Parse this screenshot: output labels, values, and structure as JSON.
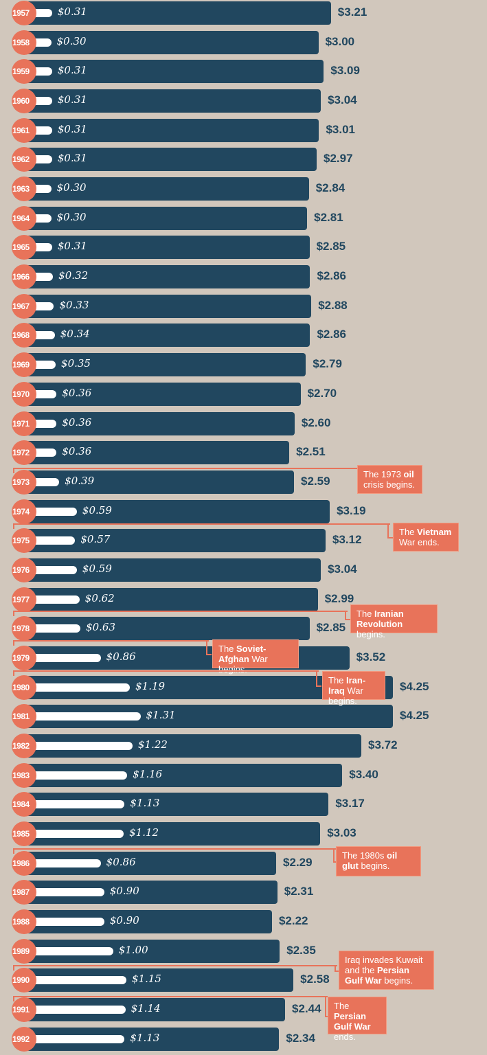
{
  "chart_data": {
    "type": "bar",
    "orientation": "horizontal",
    "categories": [
      "1957",
      "1958",
      "1959",
      "1960",
      "1961",
      "1962",
      "1963",
      "1964",
      "1965",
      "1966",
      "1967",
      "1968",
      "1969",
      "1970",
      "1971",
      "1972",
      "1973",
      "1974",
      "1975",
      "1976",
      "1977",
      "1978",
      "1979",
      "1980",
      "1981",
      "1982",
      "1983",
      "1984",
      "1985",
      "1986",
      "1987",
      "1988",
      "1989",
      "1990",
      "1991",
      "1992"
    ],
    "series": [
      {
        "values": [
          0.31,
          0.3,
          0.31,
          0.31,
          0.31,
          0.31,
          0.3,
          0.3,
          0.31,
          0.32,
          0.33,
          0.34,
          0.35,
          0.36,
          0.36,
          0.36,
          0.39,
          0.59,
          0.57,
          0.59,
          0.62,
          0.63,
          0.86,
          1.19,
          1.31,
          1.22,
          1.16,
          1.13,
          1.12,
          0.86,
          0.9,
          0.9,
          1.0,
          1.15,
          1.14,
          1.13
        ],
        "labels": [
          "$0.31",
          "$0.30",
          "$0.31",
          "$0.31",
          "$0.31",
          "$0.31",
          "$0.30",
          "$0.30",
          "$0.31",
          "$0.32",
          "$0.33",
          "$0.34",
          "$0.35",
          "$0.36",
          "$0.36",
          "$0.36",
          "$0.39",
          "$0.59",
          "$0.57",
          "$0.59",
          "$0.62",
          "$0.63",
          "$0.86",
          "$1.19",
          "$1.31",
          "$1.22",
          "$1.16",
          "$1.13",
          "$1.12",
          "$0.86",
          "$0.90",
          "$0.90",
          "$1.00",
          "$1.15",
          "$1.14",
          "$1.13"
        ],
        "color": "#ffffff"
      },
      {
        "values": [
          3.21,
          3.0,
          3.09,
          3.04,
          3.01,
          2.97,
          2.84,
          2.81,
          2.85,
          2.86,
          2.88,
          2.86,
          2.79,
          2.7,
          2.6,
          2.51,
          2.59,
          3.19,
          3.12,
          3.04,
          2.99,
          2.85,
          3.52,
          4.25,
          4.25,
          3.72,
          3.4,
          3.17,
          3.03,
          2.29,
          2.31,
          2.22,
          2.35,
          2.58,
          2.44,
          2.34
        ],
        "labels": [
          "$3.21",
          "$3.00",
          "$3.09",
          "$3.04",
          "$3.01",
          "$2.97",
          "$2.84",
          "$2.81",
          "$2.85",
          "$2.86",
          "$2.88",
          "$2.86",
          "$2.79",
          "$2.70",
          "$2.60",
          "$2.51",
          "$2.59",
          "$3.19",
          "$3.12",
          "$3.04",
          "$2.99",
          "$2.85",
          "$3.52",
          "$4.25",
          "$4.25",
          "$3.72",
          "$3.40",
          "$3.17",
          "$3.03",
          "$2.29",
          "$2.31",
          "$2.22",
          "$2.35",
          "$2.58",
          "$2.44",
          "$2.34"
        ],
        "color": "#21475f"
      }
    ],
    "annotations": [
      {
        "year": "1973",
        "segments": [
          {
            "t": "The 1973 "
          },
          {
            "t": "oil",
            "b": true
          },
          {
            "t": " crisis begins."
          }
        ]
      },
      {
        "year": "1975",
        "segments": [
          {
            "t": "The "
          },
          {
            "t": "Vietnam",
            "b": true
          },
          {
            "t": " War ends."
          }
        ]
      },
      {
        "year": "1978",
        "segments": [
          {
            "t": "The "
          },
          {
            "t": "Iranian Revolution",
            "b": true
          },
          {
            "t": " begins."
          }
        ]
      },
      {
        "year": "1979",
        "segments": [
          {
            "t": "The "
          },
          {
            "t": "Soviet-Afghan",
            "b": true
          },
          {
            "t": " War begins."
          }
        ]
      },
      {
        "year": "1980",
        "segments": [
          {
            "t": "The "
          },
          {
            "t": "Iran-Iraq",
            "b": true
          },
          {
            "t": " War begins."
          }
        ]
      },
      {
        "year": "1986",
        "segments": [
          {
            "t": "The 1980s "
          },
          {
            "t": "oil glut",
            "b": true
          },
          {
            "t": " begins."
          }
        ]
      },
      {
        "year": "1990",
        "segments": [
          {
            "t": "Iraq invades Kuwait and the "
          },
          {
            "t": "Persian Gulf War",
            "b": true
          },
          {
            "t": " begins."
          }
        ]
      },
      {
        "year": "1991",
        "segments": [
          {
            "t": "The "
          },
          {
            "t": "Persian Gulf War",
            "b": true
          },
          {
            "t": " ends."
          }
        ]
      }
    ],
    "colors": {
      "background": "#d1c7bc",
      "accent": "#e8735a",
      "bar_dark": "#21475f",
      "bar_light": "#ffffff"
    },
    "grid": false
  }
}
